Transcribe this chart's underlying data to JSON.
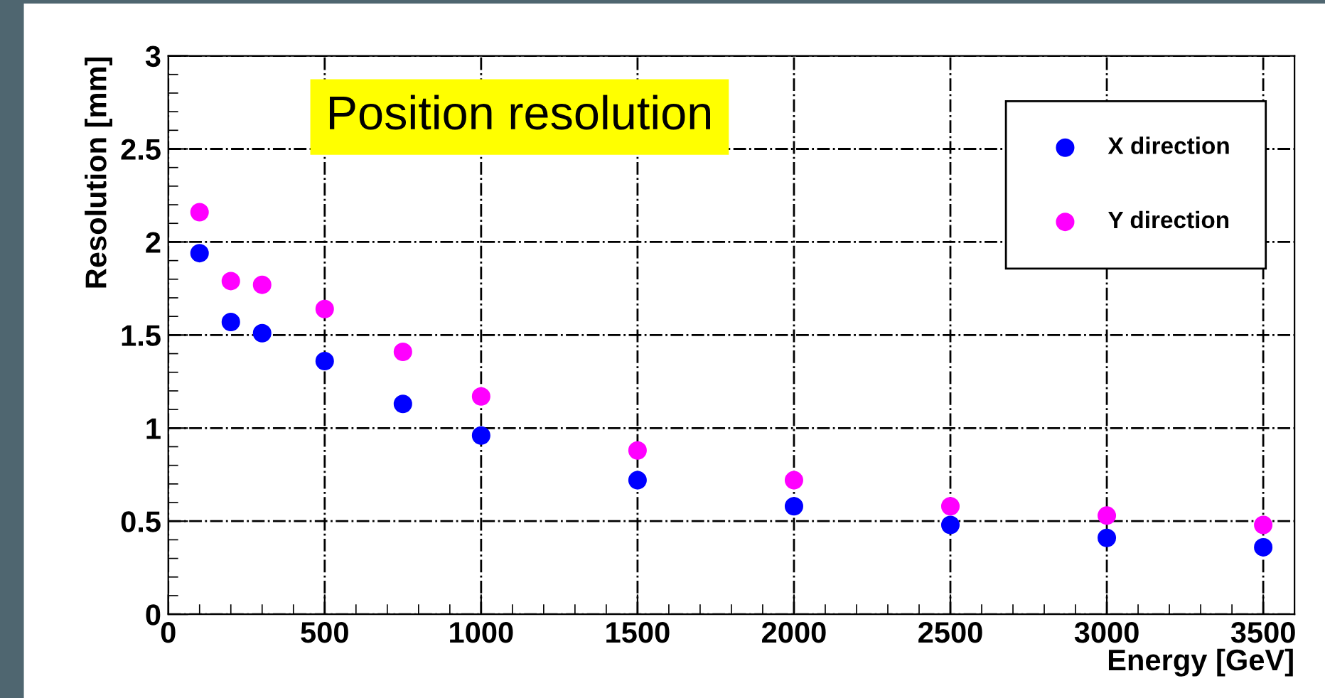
{
  "chart_data": {
    "type": "scatter",
    "title": "Position resolution",
    "xlabel": "Energy [GeV]",
    "ylabel": "Resolution [mm]",
    "x": [
      100,
      200,
      300,
      500,
      750,
      1000,
      1500,
      2000,
      2500,
      3000,
      3500
    ],
    "series": [
      {
        "name": "X direction",
        "color": "#0000ff",
        "values": [
          1.94,
          1.57,
          1.51,
          1.36,
          1.13,
          0.96,
          0.72,
          0.58,
          0.48,
          0.41,
          0.36
        ]
      },
      {
        "name": "Y direction",
        "color": "#ff00ff",
        "values": [
          2.16,
          1.79,
          1.77,
          1.64,
          1.41,
          1.17,
          0.88,
          0.72,
          0.58,
          0.53,
          0.48
        ]
      }
    ],
    "xlim": [
      0,
      3600
    ],
    "ylim": [
      0,
      3
    ],
    "xticks": [
      0,
      500,
      1000,
      1500,
      2000,
      2500,
      3000,
      3500
    ],
    "yticks": [
      0,
      0.5,
      1,
      1.5,
      2,
      2.5,
      3
    ],
    "grid": true,
    "legend": "top right",
    "marker": "circle"
  }
}
